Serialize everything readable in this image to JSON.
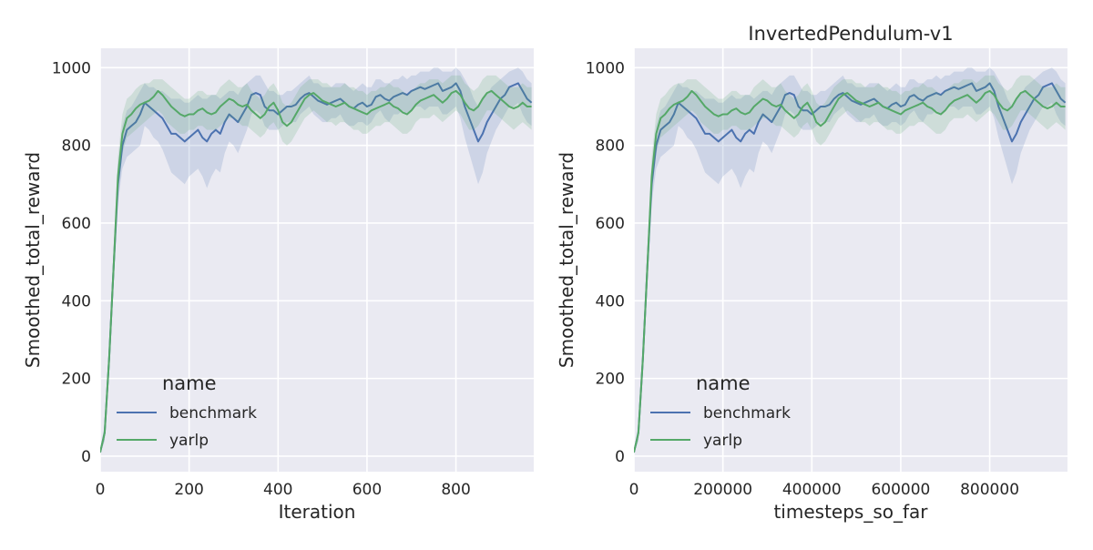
{
  "colors": {
    "background": "#eaeaf2",
    "grid": "#ffffff",
    "benchmark": "#4c72b0",
    "yarlp": "#55a868"
  },
  "chart_data": [
    {
      "type": "line",
      "title": "",
      "xlabel": "Iteration",
      "ylabel": "Smoothed_total_reward",
      "xlim": [
        0,
        975
      ],
      "ylim": [
        -40,
        1050
      ],
      "xticks": [
        0,
        200,
        400,
        600,
        800
      ],
      "xtick_labels": [
        "0",
        "200",
        "400",
        "600",
        "800"
      ],
      "yticks": [
        0,
        200,
        400,
        600,
        800,
        1000
      ],
      "ytick_labels": [
        "0",
        "200",
        "400",
        "600",
        "800",
        "1000"
      ],
      "grid": true,
      "legend": {
        "title": "name",
        "placement": "lower-left",
        "entries": [
          "benchmark",
          "yarlp"
        ]
      },
      "series": [
        {
          "name": "benchmark",
          "color_key": "benchmark",
          "x": [
            0,
            10,
            20,
            30,
            40,
            50,
            60,
            70,
            80,
            90,
            100,
            110,
            120,
            130,
            140,
            150,
            160,
            170,
            180,
            190,
            200,
            210,
            220,
            230,
            240,
            250,
            260,
            270,
            280,
            290,
            300,
            310,
            320,
            330,
            340,
            350,
            360,
            370,
            380,
            390,
            400,
            410,
            420,
            430,
            440,
            450,
            460,
            470,
            480,
            490,
            500,
            510,
            520,
            530,
            540,
            550,
            560,
            570,
            580,
            590,
            600,
            610,
            620,
            630,
            640,
            650,
            660,
            670,
            680,
            690,
            700,
            710,
            720,
            730,
            740,
            750,
            760,
            770,
            780,
            790,
            800,
            810,
            820,
            830,
            840,
            850,
            860,
            870,
            880,
            890,
            900,
            910,
            920,
            930,
            940,
            950,
            960,
            970
          ],
          "values": [
            10,
            60,
            250,
            480,
            700,
            800,
            840,
            850,
            860,
            880,
            910,
            900,
            890,
            880,
            870,
            850,
            830,
            830,
            820,
            810,
            820,
            830,
            840,
            820,
            810,
            830,
            840,
            830,
            860,
            880,
            870,
            860,
            880,
            900,
            930,
            935,
            930,
            900,
            890,
            890,
            880,
            890,
            900,
            900,
            905,
            920,
            930,
            935,
            925,
            915,
            910,
            905,
            910,
            915,
            920,
            910,
            900,
            895,
            905,
            910,
            900,
            905,
            925,
            930,
            920,
            915,
            925,
            930,
            935,
            930,
            940,
            945,
            950,
            945,
            950,
            955,
            960,
            940,
            945,
            950,
            960,
            940,
            900,
            870,
            840,
            810,
            830,
            860,
            880,
            900,
            920,
            930,
            950,
            955,
            960,
            940,
            920,
            910
          ],
          "band_low": [
            5,
            40,
            210,
            430,
            650,
            740,
            770,
            780,
            790,
            800,
            850,
            840,
            820,
            810,
            790,
            760,
            730,
            720,
            710,
            700,
            720,
            730,
            740,
            720,
            690,
            720,
            740,
            730,
            780,
            810,
            800,
            780,
            810,
            840,
            880,
            890,
            880,
            850,
            840,
            840,
            840,
            850,
            860,
            860,
            860,
            880,
            890,
            900,
            880,
            870,
            860,
            860,
            870,
            870,
            880,
            860,
            850,
            850,
            860,
            860,
            850,
            860,
            880,
            890,
            870,
            860,
            880,
            880,
            890,
            880,
            890,
            900,
            900,
            890,
            900,
            900,
            900,
            880,
            880,
            890,
            900,
            870,
            820,
            780,
            740,
            700,
            730,
            780,
            810,
            840,
            860,
            880,
            900,
            900,
            910,
            880,
            860,
            850
          ],
          "band_high": [
            15,
            80,
            290,
            530,
            750,
            850,
            890,
            900,
            920,
            940,
            960,
            950,
            950,
            940,
            940,
            930,
            920,
            920,
            920,
            910,
            910,
            920,
            930,
            920,
            920,
            930,
            930,
            920,
            930,
            940,
            940,
            930,
            950,
            960,
            970,
            980,
            980,
            960,
            940,
            940,
            930,
            930,
            940,
            940,
            950,
            960,
            970,
            980,
            960,
            960,
            950,
            950,
            950,
            960,
            960,
            960,
            950,
            940,
            950,
            960,
            950,
            950,
            970,
            970,
            960,
            960,
            970,
            970,
            980,
            970,
            980,
            980,
            990,
            990,
            990,
            1000,
            1000,
            990,
            990,
            990,
            1000,
            990,
            970,
            950,
            920,
            900,
            920,
            930,
            950,
            960,
            970,
            980,
            990,
            995,
            1000,
            990,
            970,
            960
          ]
        },
        {
          "name": "yarlp",
          "color_key": "yarlp",
          "x": [
            0,
            10,
            20,
            30,
            40,
            50,
            60,
            70,
            80,
            90,
            100,
            110,
            120,
            130,
            140,
            150,
            160,
            170,
            180,
            190,
            200,
            210,
            220,
            230,
            240,
            250,
            260,
            270,
            280,
            290,
            300,
            310,
            320,
            330,
            340,
            350,
            360,
            370,
            380,
            390,
            400,
            410,
            420,
            430,
            440,
            450,
            460,
            470,
            480,
            490,
            500,
            510,
            520,
            530,
            540,
            550,
            560,
            570,
            580,
            590,
            600,
            610,
            620,
            630,
            640,
            650,
            660,
            670,
            680,
            690,
            700,
            710,
            720,
            730,
            740,
            750,
            760,
            770,
            780,
            790,
            800,
            810,
            820,
            830,
            840,
            850,
            860,
            870,
            880,
            890,
            900,
            910,
            920,
            930,
            940,
            950,
            960,
            970
          ],
          "values": [
            10,
            60,
            250,
            480,
            720,
            830,
            870,
            880,
            895,
            905,
            910,
            915,
            925,
            940,
            930,
            915,
            900,
            890,
            880,
            875,
            880,
            880,
            890,
            895,
            885,
            880,
            885,
            900,
            910,
            920,
            915,
            905,
            900,
            905,
            890,
            880,
            870,
            880,
            900,
            910,
            890,
            860,
            850,
            860,
            880,
            900,
            920,
            930,
            935,
            925,
            915,
            910,
            905,
            900,
            905,
            910,
            900,
            895,
            890,
            885,
            880,
            890,
            895,
            900,
            905,
            910,
            900,
            895,
            885,
            880,
            890,
            905,
            915,
            920,
            925,
            930,
            920,
            910,
            920,
            935,
            940,
            930,
            910,
            895,
            890,
            900,
            920,
            935,
            940,
            930,
            920,
            910,
            900,
            895,
            900,
            910,
            900,
            900
          ],
          "band_low": [
            5,
            40,
            210,
            430,
            670,
            780,
            820,
            830,
            840,
            850,
            860,
            870,
            880,
            890,
            880,
            860,
            850,
            840,
            830,
            830,
            840,
            840,
            850,
            850,
            840,
            840,
            840,
            850,
            860,
            870,
            870,
            860,
            850,
            850,
            840,
            830,
            820,
            830,
            850,
            860,
            840,
            810,
            800,
            810,
            830,
            850,
            870,
            880,
            890,
            880,
            870,
            860,
            860,
            850,
            860,
            860,
            850,
            840,
            840,
            830,
            830,
            840,
            850,
            850,
            860,
            860,
            850,
            840,
            830,
            830,
            840,
            860,
            870,
            870,
            870,
            880,
            870,
            860,
            870,
            880,
            890,
            880,
            860,
            840,
            840,
            850,
            870,
            890,
            890,
            880,
            870,
            860,
            850,
            840,
            850,
            860,
            850,
            840
          ],
          "band_high": [
            15,
            80,
            290,
            530,
            770,
            880,
            920,
            930,
            945,
            955,
            960,
            960,
            970,
            970,
            970,
            960,
            950,
            940,
            930,
            920,
            920,
            930,
            940,
            940,
            930,
            930,
            930,
            950,
            960,
            970,
            960,
            950,
            950,
            960,
            940,
            930,
            920,
            930,
            950,
            960,
            940,
            910,
            900,
            910,
            930,
            950,
            960,
            970,
            970,
            970,
            960,
            960,
            950,
            950,
            950,
            960,
            950,
            950,
            940,
            940,
            930,
            940,
            940,
            950,
            950,
            960,
            950,
            950,
            940,
            930,
            940,
            950,
            960,
            960,
            970,
            970,
            970,
            960,
            970,
            980,
            980,
            980,
            960,
            950,
            940,
            950,
            970,
            980,
            980,
            980,
            970,
            960,
            950,
            950,
            950,
            960,
            950,
            950
          ]
        }
      ]
    },
    {
      "type": "line",
      "title": "InvertedPendulum-v1",
      "xlabel": "timesteps_so_far",
      "ylabel": "Smoothed_total_reward",
      "xlim": [
        0,
        975000
      ],
      "ylim": [
        -40,
        1050
      ],
      "xticks": [
        0,
        200000,
        400000,
        600000,
        800000
      ],
      "xtick_labels": [
        "0",
        "200000",
        "400000",
        "600000",
        "800000"
      ],
      "yticks": [
        0,
        200,
        400,
        600,
        800,
        1000
      ],
      "ytick_labels": [
        "0",
        "200",
        "400",
        "600",
        "800",
        "1000"
      ],
      "grid": true,
      "legend": {
        "title": "name",
        "placement": "lower-left",
        "entries": [
          "benchmark",
          "yarlp"
        ]
      },
      "same_series_as_chart": 0,
      "x_scale": 1000
    }
  ]
}
